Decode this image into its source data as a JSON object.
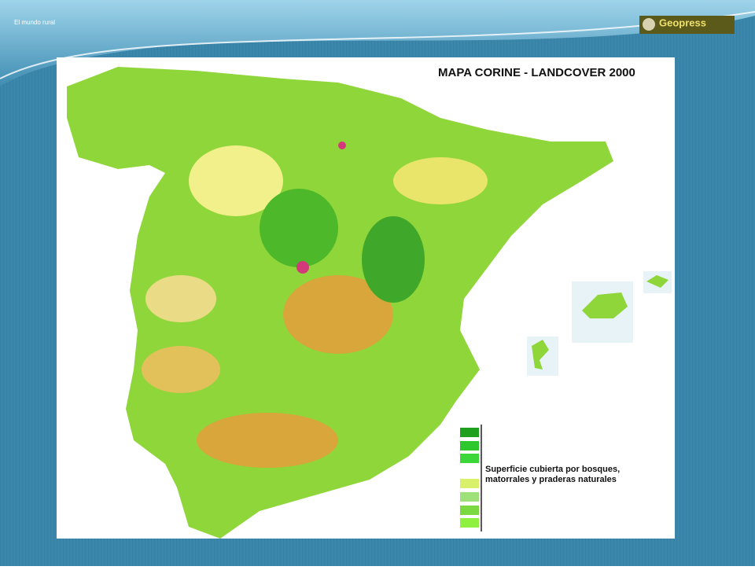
{
  "header": {
    "title": "El mundo rural",
    "logo": "Geopress"
  },
  "map": {
    "title": "MAPA CORINE - LANDCOVER 2000",
    "legend": {
      "label_lines": [
        "Superficie cubierta por bosques,",
        "matorrales y praderas naturales"
      ]
    }
  }
}
